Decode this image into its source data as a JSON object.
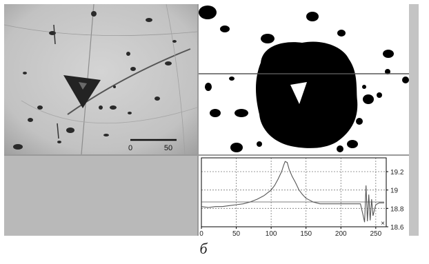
{
  "figure_label": "б",
  "scale_bar": {
    "start_label": "0",
    "end_label": "50"
  },
  "profile_plot": {
    "x_ticks": [
      "0",
      "50",
      "100",
      "150",
      "200",
      "250"
    ],
    "y_ticks": [
      "19.2",
      "19",
      "18.8",
      "18.6"
    ],
    "corner_marker": "×",
    "colors": {
      "line": "#555555",
      "grid": "#777777",
      "frame": "#000000"
    }
  },
  "chart_data": {
    "type": "line",
    "title": "",
    "xlabel": "",
    "ylabel": "",
    "xlim": [
      0,
      265
    ],
    "ylim": [
      18.6,
      19.35
    ],
    "x_ticks": [
      0,
      50,
      100,
      150,
      200,
      250
    ],
    "y_ticks": [
      18.6,
      18.8,
      19.0,
      19.2
    ],
    "grid": "dashed",
    "series": [
      {
        "values_x": [
          0,
          10,
          20,
          30,
          40,
          50,
          60,
          70,
          80,
          90,
          100,
          105,
          110,
          115,
          118,
          120,
          123,
          126,
          130,
          135,
          140,
          145,
          150,
          155,
          160,
          170,
          180,
          190,
          200,
          210,
          220,
          228,
          232,
          234,
          236,
          238,
          240,
          242,
          244,
          246,
          250,
          255,
          262
        ],
        "values_y": [
          18.82,
          18.81,
          18.82,
          18.82,
          18.83,
          18.84,
          18.85,
          18.87,
          18.9,
          18.94,
          19.0,
          19.05,
          19.12,
          19.2,
          19.27,
          19.31,
          19.3,
          19.22,
          19.15,
          19.08,
          19.0,
          18.95,
          18.91,
          18.89,
          18.87,
          18.85,
          18.85,
          18.85,
          18.85,
          18.85,
          18.85,
          18.85,
          18.72,
          18.65,
          19.05,
          18.66,
          18.95,
          18.67,
          18.9,
          18.72,
          18.84,
          18.86,
          18.86
        ]
      },
      {
        "values_x": [
          0,
          262
        ],
        "values_y": [
          18.87,
          18.87
        ]
      }
    ]
  }
}
